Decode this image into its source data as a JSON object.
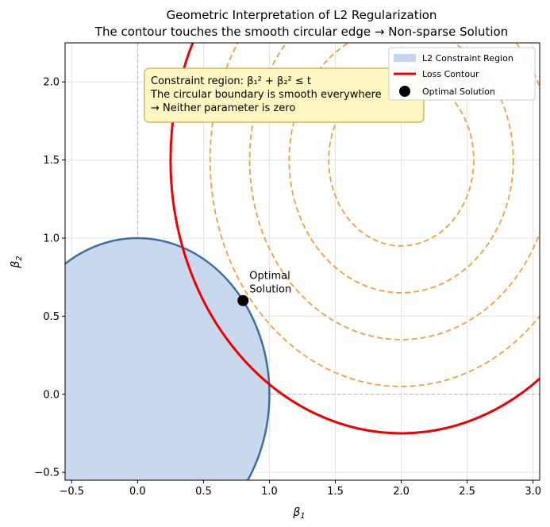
{
  "chart_data": {
    "type": "line",
    "title": "Geometric Interpretation of L2 Regularization",
    "subtitle": "The contour touches the smooth circular edge → Non-sparse Solution",
    "xlabel": "β",
    "xlabel_sub": "1",
    "ylabel": "β",
    "ylabel_sub": "2",
    "xlim": [
      -0.55,
      3.05
    ],
    "ylim": [
      -0.55,
      2.25
    ],
    "xticks": [
      -0.5,
      0.0,
      0.5,
      1.0,
      1.5,
      2.0,
      2.5,
      3.0
    ],
    "yticks": [
      -0.5,
      0.0,
      0.5,
      1.0,
      1.5,
      2.0
    ],
    "xtick_labels": [
      "−0.5",
      "0.0",
      "0.5",
      "1.0",
      "1.5",
      "2.0",
      "2.5",
      "3.0"
    ],
    "ytick_labels": [
      "−0.5",
      "0.0",
      "0.5",
      "1.0",
      "1.5",
      "2.0"
    ],
    "grid": true,
    "constraint_region": {
      "center": [
        0,
        0
      ],
      "radius": 1.0,
      "fill": "#c5d6ec",
      "edge": "#3a6ea5"
    },
    "loss_center": [
      2.0,
      1.5
    ],
    "loss_contour_radius": 1.75,
    "dashed_contour_radii": [
      0.55,
      0.85,
      1.15,
      1.45
    ],
    "loss_color": "#ee0000",
    "dashed_color": "#f0a03c",
    "optimal_point": {
      "x": 0.8,
      "y": 0.6
    },
    "optimal_annotation": [
      "Optimal",
      "Solution"
    ],
    "info_box": [
      "Constraint region:  β₁² + β₂² ≤ t",
      "The circular boundary is smooth everywhere",
      "→ Neither parameter is zero"
    ],
    "legend_position": "top-right",
    "legend": [
      {
        "label": "L2 Constraint Region",
        "kind": "patch",
        "color": "#c5d6ec"
      },
      {
        "label": "Loss Contour",
        "kind": "line",
        "color": "#ee0000"
      },
      {
        "label": "Optimal Solution",
        "kind": "marker",
        "color": "#000000"
      }
    ]
  }
}
